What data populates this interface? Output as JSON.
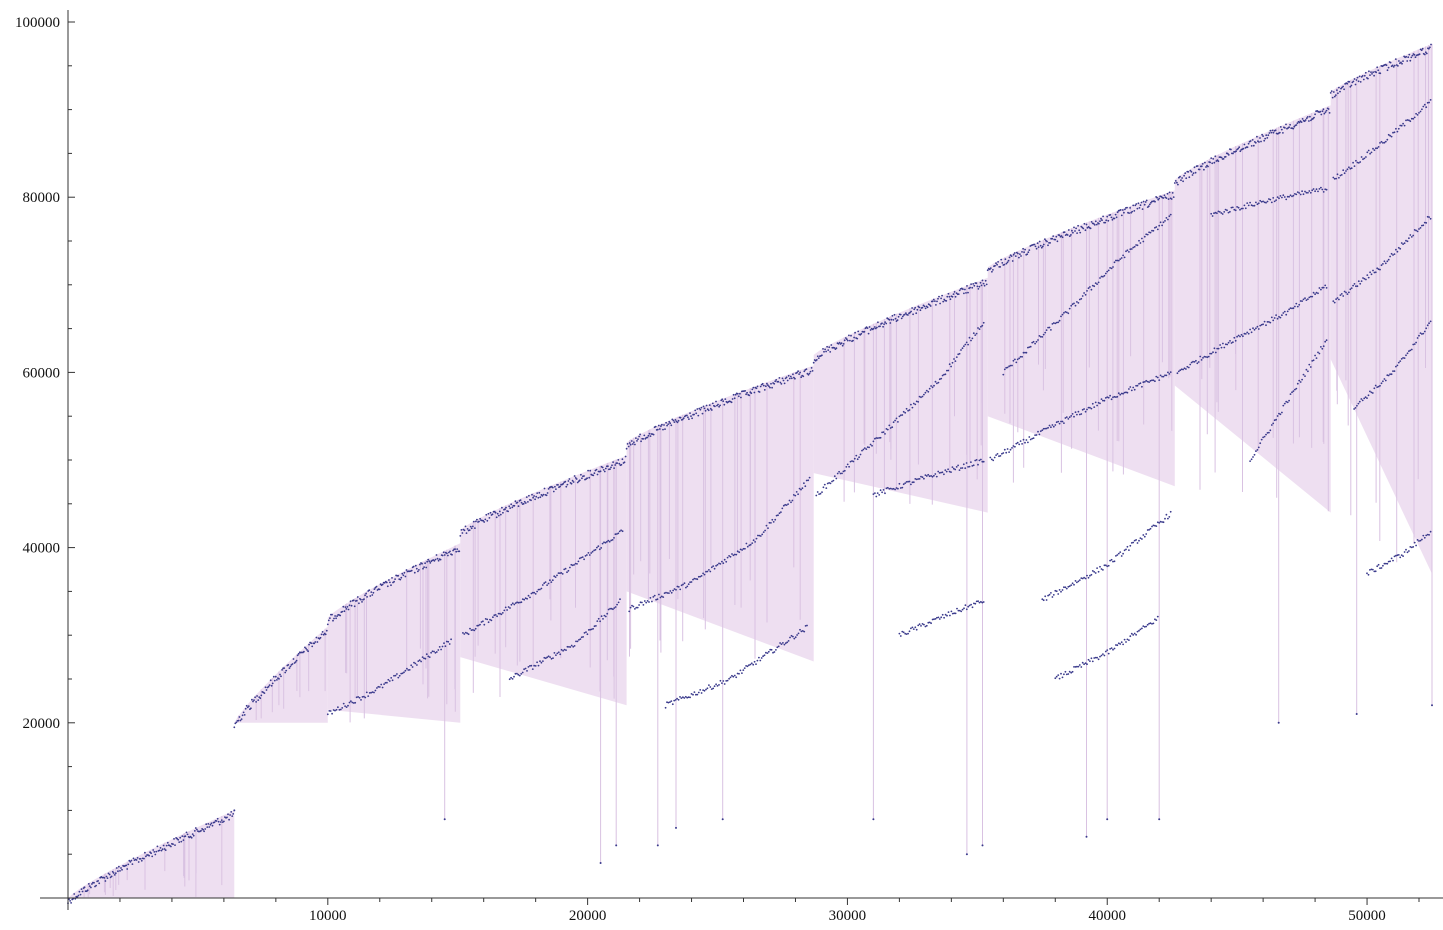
{
  "chart_data": {
    "type": "scatter",
    "title": "",
    "xlabel": "",
    "ylabel": "",
    "xlim": [
      0,
      52500
    ],
    "ylim": [
      0,
      100000
    ],
    "x_ticks": [
      10000,
      20000,
      30000,
      40000,
      50000
    ],
    "y_ticks": [
      20000,
      40000,
      60000,
      80000,
      100000
    ],
    "x_tick_labels": [
      "10000",
      "20000",
      "30000",
      "40000",
      "50000"
    ],
    "y_tick_labels": [
      "20000",
      "40000",
      "60000",
      "80000",
      "100000"
    ],
    "grid": false,
    "legend": "none",
    "colors": {
      "points": "#3a3a8c",
      "fill": "#e8d4ec",
      "stem": "#d9c2e2"
    },
    "blocks": [
      {
        "x0": 0,
        "x1": 6400,
        "lo": 0,
        "hi": 10000,
        "top0": 0,
        "top1": 10000
      },
      {
        "x0": 6400,
        "x1": 10000,
        "lo": 20000,
        "hi": 31000,
        "top0": 20000,
        "top1": 31000
      },
      {
        "x0": 10000,
        "x1": 15100,
        "lo": 20000,
        "hi": 41000,
        "top0": 32000,
        "top1": 40500
      },
      {
        "x0": 15100,
        "x1": 21500,
        "lo": 22000,
        "hi": 51000,
        "top0": 42000,
        "top1": 50500
      },
      {
        "x0": 21500,
        "x1": 28700,
        "lo": 27000,
        "hi": 61000,
        "top0": 52000,
        "top1": 60800
      },
      {
        "x0": 28700,
        "x1": 35400,
        "lo": 44000,
        "hi": 71000,
        "top0": 62000,
        "top1": 70800
      },
      {
        "x0": 35400,
        "x1": 42600,
        "lo": 47000,
        "hi": 81000,
        "top0": 72000,
        "top1": 80800
      },
      {
        "x0": 42600,
        "x1": 48600,
        "lo": 44000,
        "hi": 91000,
        "top0": 82000,
        "top1": 90500
      },
      {
        "x0": 48600,
        "x1": 52500,
        "lo": 37000,
        "hi": 98000,
        "top0": 92000,
        "top1": 97500
      }
    ],
    "branches": [
      {
        "points": [
          [
            10000,
            21000
          ],
          [
            12000,
            24000
          ],
          [
            14800,
            29500
          ]
        ]
      },
      {
        "points": [
          [
            15200,
            30000
          ],
          [
            18000,
            35000
          ],
          [
            21400,
            42000
          ]
        ]
      },
      {
        "points": [
          [
            17000,
            25000
          ],
          [
            19500,
            29000
          ],
          [
            21300,
            34000
          ]
        ]
      },
      {
        "points": [
          [
            21600,
            33000
          ],
          [
            24000,
            36000
          ],
          [
            26500,
            41000
          ],
          [
            28600,
            48000
          ]
        ]
      },
      {
        "points": [
          [
            23000,
            22000
          ],
          [
            25500,
            25000
          ],
          [
            28500,
            31000
          ]
        ]
      },
      {
        "points": [
          [
            28800,
            46000
          ],
          [
            31000,
            52000
          ],
          [
            33500,
            59000
          ],
          [
            35300,
            66000
          ]
        ]
      },
      {
        "points": [
          [
            31000,
            46000
          ],
          [
            33000,
            48000
          ],
          [
            35300,
            50000
          ]
        ]
      },
      {
        "points": [
          [
            32000,
            30000
          ],
          [
            34000,
            32500
          ],
          [
            35300,
            34000
          ]
        ]
      },
      {
        "points": [
          [
            35500,
            50000
          ],
          [
            38000,
            54000
          ],
          [
            40000,
            57000
          ],
          [
            42500,
            60000
          ]
        ]
      },
      {
        "points": [
          [
            36000,
            60000
          ],
          [
            38500,
            67000
          ],
          [
            40500,
            73000
          ],
          [
            42500,
            78000
          ]
        ]
      },
      {
        "points": [
          [
            37500,
            34000
          ],
          [
            40000,
            38000
          ],
          [
            42500,
            44000
          ]
        ]
      },
      {
        "points": [
          [
            38000,
            25000
          ],
          [
            40000,
            28000
          ],
          [
            42000,
            32000
          ]
        ]
      },
      {
        "points": [
          [
            42700,
            60000
          ],
          [
            45000,
            64000
          ],
          [
            47000,
            67000
          ],
          [
            48500,
            70000
          ]
        ]
      },
      {
        "points": [
          [
            44000,
            78000
          ],
          [
            46000,
            79500
          ],
          [
            48500,
            81000
          ]
        ]
      },
      {
        "points": [
          [
            45500,
            50000
          ],
          [
            47000,
            57000
          ],
          [
            48500,
            64000
          ]
        ]
      },
      {
        "points": [
          [
            48700,
            82000
          ],
          [
            50500,
            86000
          ],
          [
            52500,
            91000
          ]
        ]
      },
      {
        "points": [
          [
            48700,
            68000
          ],
          [
            50500,
            72000
          ],
          [
            52500,
            78000
          ]
        ]
      },
      {
        "points": [
          [
            49500,
            56000
          ],
          [
            51000,
            60000
          ],
          [
            52500,
            66000
          ]
        ]
      },
      {
        "points": [
          [
            50000,
            37000
          ],
          [
            51500,
            39500
          ],
          [
            52500,
            42000
          ]
        ]
      }
    ],
    "deep_stems": [
      [
        6400,
        10000
      ],
      [
        14500,
        9000
      ],
      [
        20500,
        4000
      ],
      [
        21100,
        6000
      ],
      [
        22700,
        6000
      ],
      [
        23400,
        8000
      ],
      [
        25200,
        9000
      ],
      [
        31000,
        9000
      ],
      [
        34600,
        5000
      ],
      [
        35200,
        6000
      ],
      [
        39200,
        7000
      ],
      [
        40000,
        9000
      ],
      [
        42000,
        9000
      ],
      [
        46600,
        20000
      ],
      [
        49600,
        21000
      ],
      [
        52500,
        22000
      ]
    ]
  }
}
